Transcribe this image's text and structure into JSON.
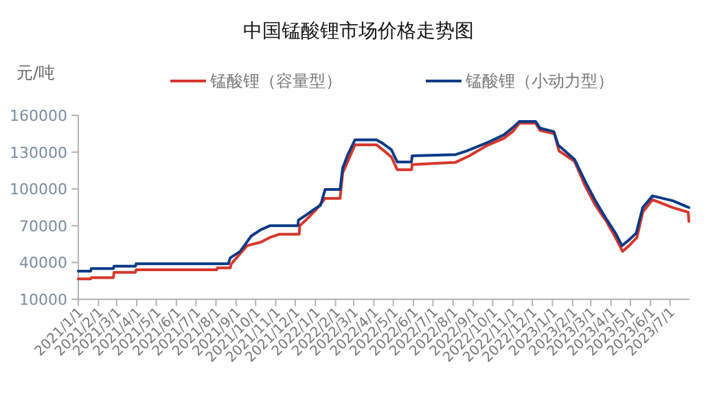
{
  "chart_data": {
    "type": "line",
    "title": "中国锰酸锂市场价格走势图",
    "ylabel": "元/吨",
    "legend": "top",
    "xlim": [
      "2021-01-01",
      "2023-07-31"
    ],
    "ylim": [
      10000,
      160000
    ],
    "yticks": [
      10000,
      40000,
      70000,
      100000,
      130000,
      160000
    ],
    "xticks": [
      {
        "value": "2021-01-01",
        "label": "2021/1/1"
      },
      {
        "value": "2021-02-01",
        "label": "2021/2/1"
      },
      {
        "value": "2021-03-01",
        "label": "2021/3/1"
      },
      {
        "value": "2021-04-01",
        "label": "2021/4/1"
      },
      {
        "value": "2021-05-01",
        "label": "2021/5/1"
      },
      {
        "value": "2021-06-01",
        "label": "2021/6/1"
      },
      {
        "value": "2021-07-01",
        "label": "2021/7/1"
      },
      {
        "value": "2021-08-01",
        "label": "2021/8/1"
      },
      {
        "value": "2021-09-01",
        "label": "2021/9/1"
      },
      {
        "value": "2021-10-01",
        "label": "2021/10/1"
      },
      {
        "value": "2021-11-01",
        "label": "2021/11/1"
      },
      {
        "value": "2021-12-01",
        "label": "2021/12/1"
      },
      {
        "value": "2022-01-01",
        "label": "2022/1/1"
      },
      {
        "value": "2022-02-01",
        "label": "2022/2/1"
      },
      {
        "value": "2022-03-01",
        "label": "2022/3/1"
      },
      {
        "value": "2022-04-01",
        "label": "2022/4/1"
      },
      {
        "value": "2022-05-01",
        "label": "2022/5/1"
      },
      {
        "value": "2022-06-01",
        "label": "2022/6/1"
      },
      {
        "value": "2022-07-01",
        "label": "2022/7/1"
      },
      {
        "value": "2022-08-01",
        "label": "2022/8/1"
      },
      {
        "value": "2022-09-01",
        "label": "2022/9/1"
      },
      {
        "value": "2022-10-01",
        "label": "2022/10/1"
      },
      {
        "value": "2022-11-01",
        "label": "2022/11/1"
      },
      {
        "value": "2022-12-01",
        "label": "2022/12/1"
      },
      {
        "value": "2023-01-01",
        "label": "2023/1/1"
      },
      {
        "value": "2023-02-01",
        "label": "2023/2/1"
      },
      {
        "value": "2023-03-01",
        "label": "2023/3/1"
      },
      {
        "value": "2023-04-01",
        "label": "2023/4/1"
      },
      {
        "value": "2023-05-01",
        "label": "2023/5/1"
      },
      {
        "value": "2023-06-01",
        "label": "2023/6/1"
      },
      {
        "value": "2023-07-01",
        "label": "2023/7/1"
      }
    ],
    "series": [
      {
        "name": "锰酸锂（容量型）",
        "color": "#d7372b",
        "x": [
          "2021-01-01",
          "2021-01-20",
          "2021-01-21",
          "2021-02-24",
          "2021-02-25",
          "2021-03-30",
          "2021-03-31",
          "2021-08-02",
          "2021-08-03",
          "2021-08-23",
          "2021-08-24",
          "2021-09-04",
          "2021-09-18",
          "2021-10-09",
          "2021-10-23",
          "2021-11-06",
          "2021-12-07",
          "2021-12-08",
          "2021-12-19",
          "2022-01-02",
          "2022-01-16",
          "2022-02-08",
          "2022-02-12",
          "2022-02-20",
          "2022-03-03",
          "2022-04-05",
          "2022-04-15",
          "2022-04-28",
          "2022-05-07",
          "2022-05-29",
          "2022-05-30",
          "2022-08-05",
          "2022-08-26",
          "2022-09-23",
          "2022-10-18",
          "2022-11-01",
          "2022-11-11",
          "2022-12-06",
          "2022-12-13",
          "2023-01-04",
          "2023-01-11",
          "2023-02-04",
          "2023-02-21",
          "2023-03-08",
          "2023-03-25",
          "2023-04-08",
          "2023-04-19",
          "2023-05-01",
          "2023-05-11",
          "2023-05-20",
          "2023-06-04",
          "2023-07-05",
          "2023-07-29",
          "2023-07-30"
        ],
        "values": [
          26600,
          26600,
          27700,
          27700,
          32000,
          32000,
          34000,
          34000,
          35600,
          35600,
          38500,
          45300,
          53700,
          56600,
          60400,
          63000,
          63000,
          70000,
          75400,
          83000,
          92300,
          92300,
          113000,
          122500,
          136000,
          136000,
          131800,
          126000,
          115700,
          115700,
          119800,
          121700,
          127000,
          135600,
          141200,
          146800,
          153600,
          153600,
          147600,
          145000,
          131000,
          122500,
          101700,
          86700,
          73500,
          60400,
          49100,
          54800,
          60400,
          81000,
          91200,
          84800,
          81000,
          73500
        ]
      },
      {
        "name": "锰酸锂（小动力型）",
        "color": "#0a3a86",
        "x": [
          "2021-01-01",
          "2021-01-20",
          "2021-01-21",
          "2021-02-24",
          "2021-02-25",
          "2021-03-30",
          "2021-03-31",
          "2021-08-20",
          "2021-08-23",
          "2021-09-07",
          "2021-09-14",
          "2021-09-24",
          "2021-10-09",
          "2021-10-23",
          "2021-12-05",
          "2021-12-06",
          "2021-12-15",
          "2021-12-29",
          "2022-01-09",
          "2022-01-16",
          "2022-02-08",
          "2022-02-12",
          "2022-02-20",
          "2022-03-03",
          "2022-04-05",
          "2022-04-15",
          "2022-04-28",
          "2022-05-07",
          "2022-05-29",
          "2022-05-30",
          "2022-08-05",
          "2022-08-22",
          "2022-09-23",
          "2022-10-18",
          "2022-11-01",
          "2022-11-11",
          "2022-12-06",
          "2022-12-13",
          "2023-01-03",
          "2023-01-10",
          "2023-02-04",
          "2023-02-21",
          "2023-03-08",
          "2023-03-25",
          "2023-04-08",
          "2023-04-18",
          "2023-04-29",
          "2023-05-10",
          "2023-05-20",
          "2023-06-04",
          "2023-07-05",
          "2023-07-30"
        ],
        "values": [
          33000,
          33000,
          35000,
          35000,
          37000,
          37000,
          39000,
          39000,
          43800,
          49000,
          54000,
          61500,
          66700,
          70000,
          70000,
          74600,
          77700,
          83000,
          86700,
          99500,
          99500,
          117000,
          128000,
          140000,
          140000,
          137000,
          132000,
          122000,
          122000,
          127000,
          128000,
          131000,
          137800,
          144000,
          150000,
          155000,
          155000,
          149500,
          146800,
          135600,
          124000,
          105500,
          90400,
          75400,
          64000,
          53700,
          58500,
          64000,
          84800,
          94300,
          90400,
          84800
        ]
      }
    ]
  }
}
